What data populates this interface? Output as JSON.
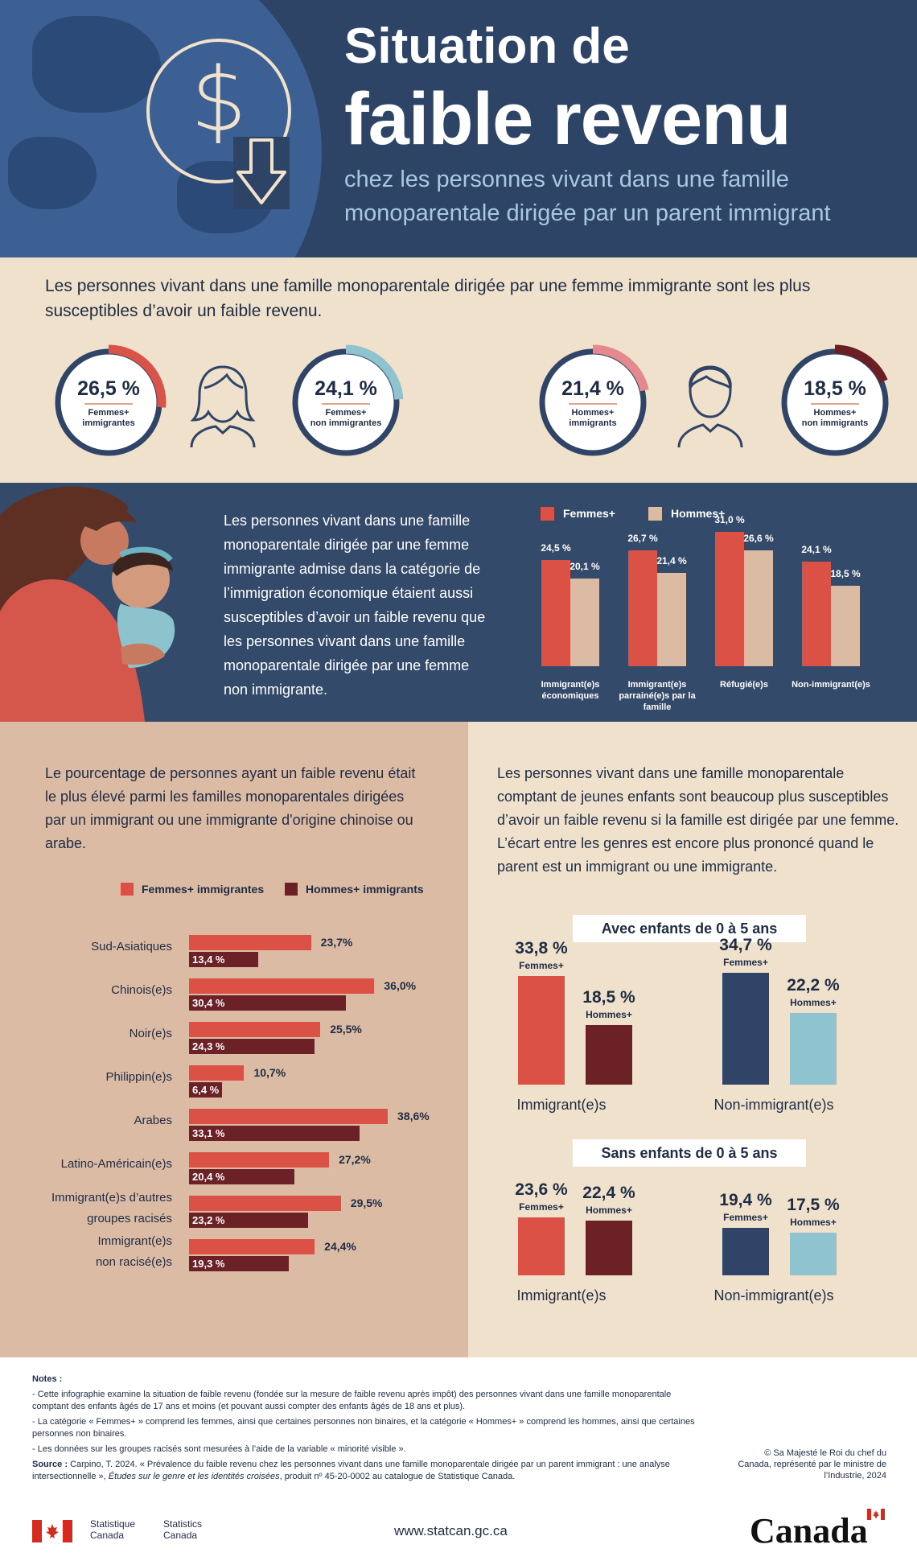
{
  "header": {
    "title_line1": "Situation de",
    "title_line2": "faible revenu",
    "subtitle": "chez les personnes vivant dans une famille monoparentale dirigée par un parent immigrant"
  },
  "intro": {
    "text": "Les personnes vivant dans une famille monoparentale dirigée par une femme immigrante sont les plus susceptibles d’avoir un faible revenu.",
    "rings": [
      {
        "value": "26,5 %",
        "label_line1": "Femmes+",
        "label_line2": "immigrantes",
        "pct": 26.5,
        "color": "#d9534a"
      },
      {
        "value": "24,1 %",
        "label_line1": "Femmes+",
        "label_line2": "non immigrantes",
        "pct": 24.1,
        "color": "#8fc3cf"
      },
      {
        "value": "21,4 %",
        "label_line1": "Hommes+",
        "label_line2": "immigrants",
        "pct": 21.4,
        "color": "#e48a8e"
      },
      {
        "value": "18,5 %",
        "label_line1": "Hommes+",
        "label_line2": "non immigrants",
        "pct": 18.5,
        "color": "#6b1f24"
      }
    ]
  },
  "admission": {
    "text": "Les personnes vivant dans une famille monoparentale dirigée par une femme immigrante admise dans la catégorie de l’immigration économique étaient aussi susceptibles d’avoir  un faible revenu que les personnes vivant dans une famille monoparentale dirigée par une femme non immigrante.",
    "legend_women": "Femmes+",
    "legend_men": "Hommes+",
    "color_women": "#db5145",
    "color_men": "#dcbba5"
  },
  "chart_data": [
    {
      "type": "bar",
      "categories": [
        "Immigrant(e)s économiques",
        "Immigrant(e)s parrainé(e)s par la famille",
        "Réfugié(e)s",
        "Non-immigrant(e)s"
      ],
      "series": [
        {
          "name": "Femmes+",
          "values": [
            24.5,
            26.7,
            31.0,
            24.1
          ],
          "labels": [
            "24,5 %",
            "26,7 %",
            "31,0 %",
            "24,1 %"
          ]
        },
        {
          "name": "Hommes+",
          "values": [
            20.1,
            21.4,
            26.6,
            18.5
          ],
          "labels": [
            "20,1 %",
            "21,4 %",
            "26,6 %",
            "18,5 %"
          ]
        }
      ],
      "ylim": [
        0,
        31
      ]
    },
    {
      "type": "bar",
      "orientation": "horizontal",
      "categories": [
        "Sud-Asiatiques",
        "Chinois(e)s",
        "Noir(e)s",
        "Philippin(e)s",
        "Arabes",
        "Latino-Américain(e)s",
        "Immigrant(e)s d’autres groupes racisés",
        "Immigrant(e)s non racisé(e)s"
      ],
      "series": [
        {
          "name": "Femmes+ immigrantes",
          "values": [
            23.7,
            36.0,
            25.5,
            10.7,
            38.6,
            27.2,
            29.5,
            24.4
          ],
          "labels": [
            "23,7%",
            "36,0%",
            "25,5%",
            "10,7%",
            "38,6%",
            "27,2%",
            "29,5%",
            "24,4%"
          ]
        },
        {
          "name": "Hommes+ immigrants",
          "values": [
            13.4,
            30.4,
            24.3,
            6.4,
            33.1,
            20.4,
            23.2,
            19.3
          ],
          "labels": [
            "13,4 %",
            "30,4 %",
            "24,3 %",
            "6,4 %",
            "33,1 %",
            "20,4 %",
            "23,2 %",
            "19,3 %"
          ]
        }
      ],
      "xlim": [
        0,
        38.6
      ]
    },
    {
      "type": "bar",
      "title": "Avec enfants de 0 à 5 ans",
      "categories": [
        "Immigrant(e)s",
        "Non-immigrant(e)s"
      ],
      "series": [
        {
          "name": "Femmes+",
          "values": [
            33.8,
            34.7
          ],
          "labels": [
            "33,8 %",
            "34,7 %"
          ]
        },
        {
          "name": "Hommes+",
          "values": [
            18.5,
            22.2
          ],
          "labels": [
            "18,5 %",
            "22,2 %"
          ]
        }
      ]
    },
    {
      "type": "bar",
      "title": "Sans enfants de 0 à 5 ans",
      "categories": [
        "Immigrant(e)s",
        "Non-immigrant(e)s"
      ],
      "series": [
        {
          "name": "Femmes+",
          "values": [
            23.6,
            19.4
          ],
          "labels": [
            "23,6 %",
            "19,4 %"
          ]
        },
        {
          "name": "Hommes+",
          "values": [
            22.4,
            17.5
          ],
          "labels": [
            "22,4 %",
            "17,5 %"
          ]
        }
      ]
    }
  ],
  "ethnic": {
    "text": "Le pourcentage de personnes ayant un faible revenu était le plus élevé parmi les familles monoparentales dirigées par un immigrant ou une immigrante d'origine chinoise ou arabe.",
    "legend_women": "Femmes+ immigrantes",
    "legend_men": "Hommes+ immigrants",
    "label_lines": [
      [
        "Sud-Asiatiques"
      ],
      [
        "Chinois(e)s"
      ],
      [
        "Noir(e)s"
      ],
      [
        "Philippin(e)s"
      ],
      [
        "Arabes"
      ],
      [
        "Latino-Américain(e)s"
      ],
      [
        "Immigrant(e)s d’autres",
        "groupes racisés"
      ],
      [
        "Immigrant(e)s",
        "non racisé(e)s"
      ]
    ]
  },
  "kids": {
    "text": "Les personnes vivant dans une famille monoparentale comptant de jeunes enfants sont beaucoup plus susceptibles d’avoir un faible revenu si la famille est dirigée par une femme. L’écart entre les genres est encore plus prononcé quand le parent est un immigrant ou une immigrante.",
    "label_women": "Femmes+",
    "label_men": "Hommes+",
    "color_imm_women": "#db5145",
    "color_imm_men": "#6b2126",
    "color_non_women": "#2f4466",
    "color_non_men": "#8fc3cf"
  },
  "footer": {
    "notes_title": "Notes :",
    "note1": "- Cette infographie examine la situation de faible revenu (fondée sur la mesure de faible revenu après impôt) des personnes vivant dans une famille monoparentale comptant des enfants âgés de 17 ans et moins (et pouvant aussi compter des enfants âgés de 18 ans et plus).",
    "note2": "- La catégorie « Femmes+ » comprend les femmes, ainsi que certaines personnes non binaires, et la catégorie « Hommes+ » comprend les hommes, ainsi que certaines personnes non binaires.",
    "note3": "- Les données sur les groupes racisés sont mesurées à l’aide de la variable « minorité visible ».",
    "source_label": "Source :",
    "source_text": "Carpino, T. 2024. « Prévalence du faible revenu chez les personnes vivant dans une famille monoparentale dirigée par un parent immigrant : une analyse intersectionnelle »,",
    "source_italic": "Études sur le genre et les identités croisées",
    "source_end": ", produit nº 45-20-0002 au catalogue de Statistique Canada.",
    "copyright": "© Sa Majesté le Roi du chef du Canada, représenté par le ministre de l’Industrie, 2024",
    "statcan_fr_1": "Statistique",
    "statcan_fr_2": "Canada",
    "statcan_en_1": "Statistics",
    "statcan_en_2": "Canada",
    "url": "www.statcan.gc.ca",
    "wordmark": "Canada"
  }
}
